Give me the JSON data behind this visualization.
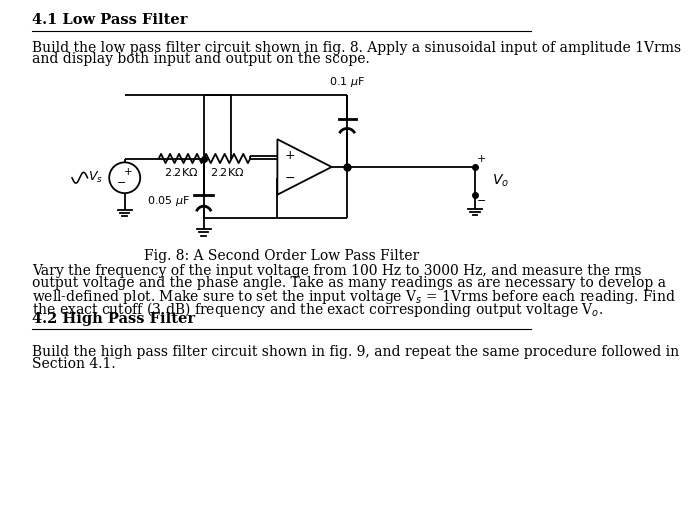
{
  "title_41": "4.1 Low Pass Filter",
  "title_42": "4.2 High Pass Filter",
  "fig_caption": "Fig. 8: A Second Order Low Pass Filter",
  "bg_color": "#ffffff",
  "text_color": "#000000",
  "font_size_title": 10.5,
  "font_size_body": 10.0,
  "line1": "Build the low pass filter circuit shown in fig. 8. Apply a sinusoidal input of amplitude 1Vrms",
  "line2": "and display both input and output on the scope.",
  "p2_lines": [
    "Vary the frequency of the input voltage from 100 Hz to 3000 Hz, and measure the rms",
    "output voltage and the phase angle. Take as many readings as are necessary to develop a",
    "well-defined plot. Make sure to set the input voltage V_s = 1Vrms before each reading. Find",
    "the exact cutoff (3 dB) frequency and the exact corresponding output voltage V_o."
  ],
  "p3_lines": [
    "Build the high pass filter circuit shown in fig. 9, and repeat the same procedure followed in",
    "Section 4.1."
  ]
}
